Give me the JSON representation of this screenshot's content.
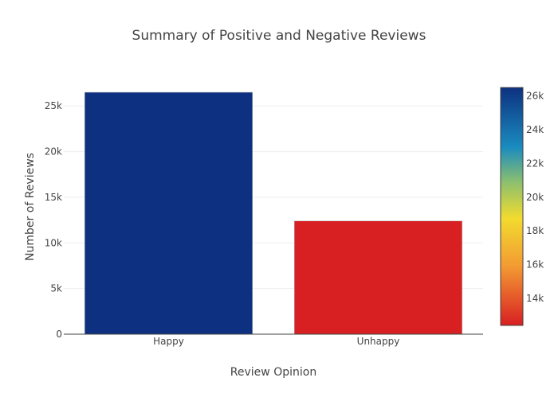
{
  "chart_data": {
    "type": "bar",
    "title": "Summary of Positive and Negative Reviews",
    "xlabel": "Review Opinion",
    "ylabel": "Number of Reviews",
    "categories": [
      "Happy",
      "Unhappy"
    ],
    "values": [
      26500,
      12400
    ],
    "ylim": [
      0,
      26500
    ],
    "yticks": [
      0,
      5000,
      10000,
      15000,
      20000,
      25000
    ],
    "ytick_labels": [
      "0",
      "5k",
      "10k",
      "15k",
      "20k",
      "25k"
    ],
    "grid": true,
    "bar_colors": [
      "#0d3180",
      "#d81f22"
    ],
    "colorbar": {
      "range": [
        12400,
        26500
      ],
      "ticks": [
        14000,
        16000,
        18000,
        20000,
        22000,
        24000,
        26000
      ],
      "tick_labels": [
        "14k",
        "16k",
        "18k",
        "20k",
        "22k",
        "24k",
        "26k"
      ],
      "colorscale": [
        [
          0.0,
          "#d81f22"
        ],
        [
          0.25,
          "#f39b33"
        ],
        [
          0.45,
          "#f2db2f"
        ],
        [
          0.6,
          "#8ec06d"
        ],
        [
          0.75,
          "#1a8bbf"
        ],
        [
          1.0,
          "#0d3180"
        ]
      ]
    }
  }
}
